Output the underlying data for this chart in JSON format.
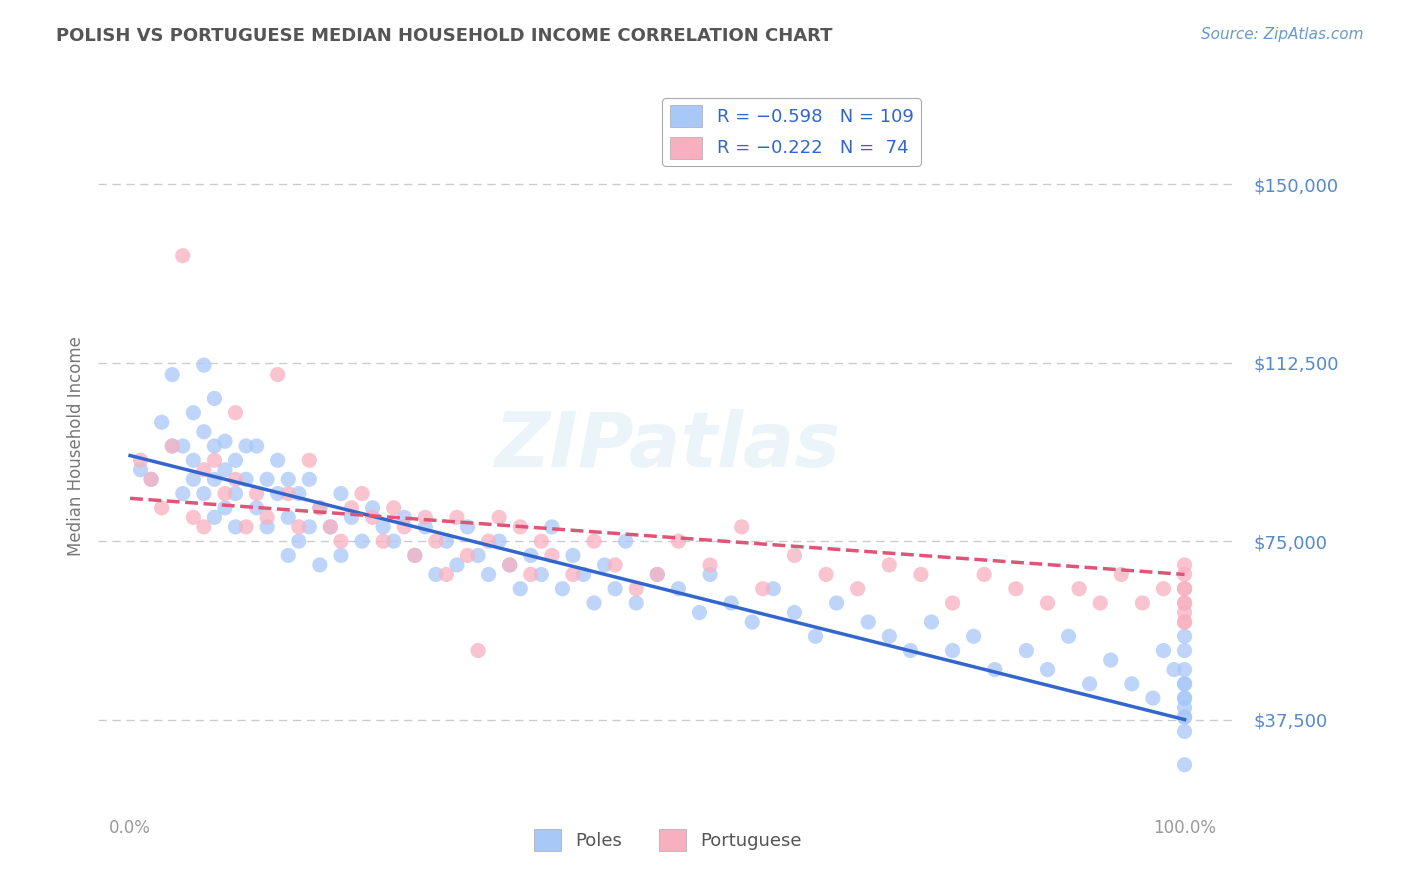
{
  "title": "POLISH VS PORTUGUESE MEDIAN HOUSEHOLD INCOME CORRELATION CHART",
  "source": "Source: ZipAtlas.com",
  "ylabel": "Median Household Income",
  "yticks": [
    37500,
    75000,
    112500,
    150000
  ],
  "ytick_labels": [
    "$37,500",
    "$75,000",
    "$112,500",
    "$150,000"
  ],
  "ylim": [
    20000,
    170000
  ],
  "xlim": [
    -3,
    105
  ],
  "blue_color": "#a8c8f8",
  "pink_color": "#f8b0c0",
  "blue_line_color": "#3366cc",
  "pink_line_color": "#dd5577",
  "title_color": "#555555",
  "source_color": "#6699cc",
  "ylabel_color": "#777777",
  "ytick_color": "#5588cc",
  "grid_color": "#cccccc",
  "background_color": "#ffffff",
  "poles_x": [
    1,
    2,
    3,
    4,
    4,
    5,
    5,
    6,
    6,
    6,
    7,
    7,
    7,
    8,
    8,
    8,
    8,
    9,
    9,
    9,
    10,
    10,
    10,
    11,
    11,
    12,
    12,
    13,
    13,
    14,
    14,
    15,
    15,
    15,
    16,
    16,
    17,
    17,
    18,
    18,
    19,
    20,
    20,
    21,
    22,
    23,
    24,
    25,
    26,
    27,
    28,
    29,
    30,
    31,
    32,
    33,
    34,
    35,
    36,
    37,
    38,
    39,
    40,
    41,
    42,
    43,
    44,
    45,
    46,
    47,
    48,
    50,
    52,
    54,
    55,
    57,
    59,
    61,
    63,
    65,
    67,
    70,
    72,
    74,
    76,
    78,
    80,
    82,
    85,
    87,
    89,
    91,
    93,
    95,
    97,
    98,
    99,
    100,
    100,
    100,
    100,
    100,
    100,
    100,
    100,
    100,
    100,
    100,
    100
  ],
  "poles_y": [
    90000,
    88000,
    100000,
    95000,
    110000,
    85000,
    95000,
    88000,
    102000,
    92000,
    98000,
    85000,
    112000,
    88000,
    95000,
    80000,
    105000,
    90000,
    82000,
    96000,
    85000,
    92000,
    78000,
    95000,
    88000,
    82000,
    95000,
    88000,
    78000,
    85000,
    92000,
    88000,
    80000,
    72000,
    85000,
    75000,
    88000,
    78000,
    82000,
    70000,
    78000,
    85000,
    72000,
    80000,
    75000,
    82000,
    78000,
    75000,
    80000,
    72000,
    78000,
    68000,
    75000,
    70000,
    78000,
    72000,
    68000,
    75000,
    70000,
    65000,
    72000,
    68000,
    78000,
    65000,
    72000,
    68000,
    62000,
    70000,
    65000,
    75000,
    62000,
    68000,
    65000,
    60000,
    68000,
    62000,
    58000,
    65000,
    60000,
    55000,
    62000,
    58000,
    55000,
    52000,
    58000,
    52000,
    55000,
    48000,
    52000,
    48000,
    55000,
    45000,
    50000,
    45000,
    42000,
    52000,
    48000,
    40000,
    55000,
    45000,
    48000,
    38000,
    42000,
    52000,
    45000,
    38000,
    35000,
    42000,
    28000
  ],
  "portuguese_x": [
    1,
    2,
    3,
    4,
    5,
    6,
    7,
    7,
    8,
    9,
    10,
    10,
    11,
    12,
    13,
    14,
    15,
    16,
    17,
    18,
    19,
    20,
    21,
    22,
    23,
    24,
    25,
    26,
    27,
    28,
    29,
    30,
    31,
    32,
    33,
    34,
    35,
    36,
    37,
    38,
    39,
    40,
    42,
    44,
    46,
    48,
    50,
    52,
    55,
    58,
    60,
    63,
    66,
    69,
    72,
    75,
    78,
    81,
    84,
    87,
    90,
    92,
    94,
    96,
    98,
    100,
    100,
    100,
    100,
    100,
    100,
    100,
    100,
    100
  ],
  "portuguese_y": [
    92000,
    88000,
    82000,
    95000,
    135000,
    80000,
    90000,
    78000,
    92000,
    85000,
    88000,
    102000,
    78000,
    85000,
    80000,
    110000,
    85000,
    78000,
    92000,
    82000,
    78000,
    75000,
    82000,
    85000,
    80000,
    75000,
    82000,
    78000,
    72000,
    80000,
    75000,
    68000,
    80000,
    72000,
    52000,
    75000,
    80000,
    70000,
    78000,
    68000,
    75000,
    72000,
    68000,
    75000,
    70000,
    65000,
    68000,
    75000,
    70000,
    78000,
    65000,
    72000,
    68000,
    65000,
    70000,
    68000,
    62000,
    68000,
    65000,
    62000,
    65000,
    62000,
    68000,
    62000,
    65000,
    62000,
    70000,
    65000,
    60000,
    68000,
    62000,
    58000,
    65000,
    58000
  ],
  "blue_line_x0": 0,
  "blue_line_y0": 93000,
  "blue_line_x1": 100,
  "blue_line_y1": 37500,
  "pink_line_x0": 0,
  "pink_line_y0": 84000,
  "pink_line_x1": 100,
  "pink_line_y1": 68000
}
